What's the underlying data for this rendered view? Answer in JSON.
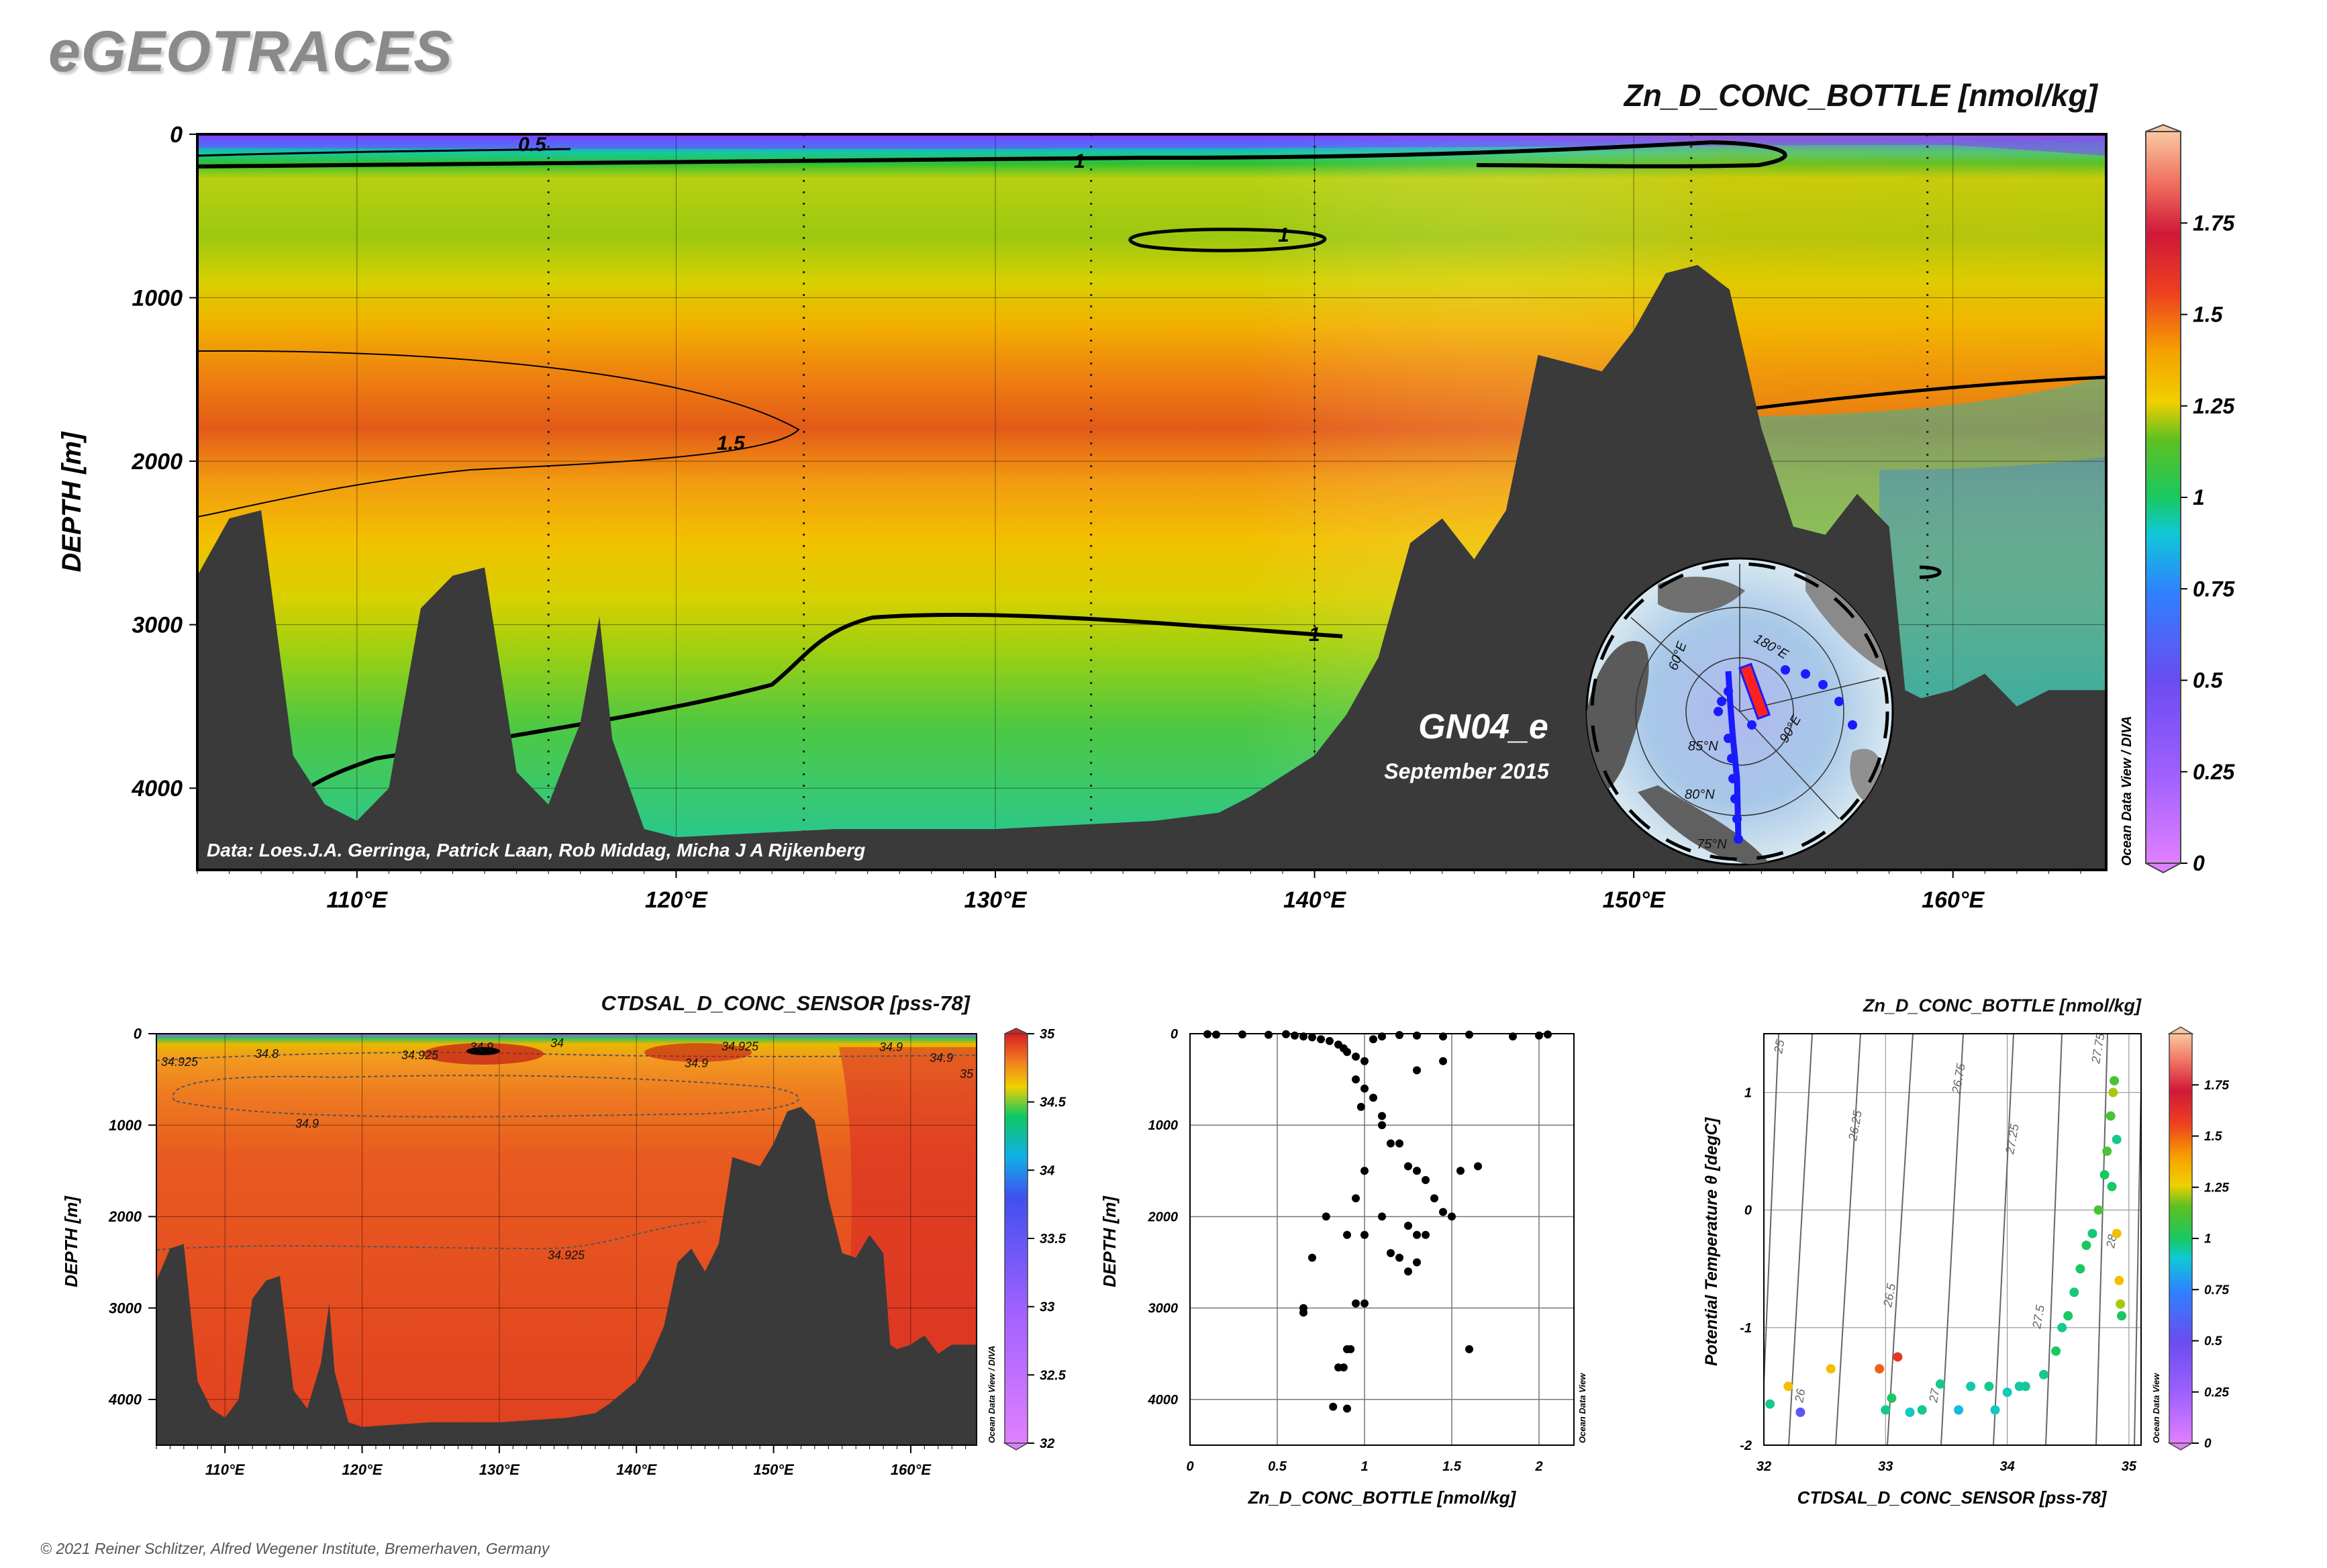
{
  "brand": "eGEOTRACES",
  "copyright": "© 2021 Reiner Schlitzer, Alfred Wegener Institute, Bremerhaven, Germany",
  "chart_data": [
    {
      "type": "heatmap",
      "title": "Zn_D_CONC_BOTTLE [nmol/kg]",
      "ylabel": "DEPTH [m]",
      "xlabel": "",
      "xlim": [
        105,
        164.8
      ],
      "ylim": [
        4500,
        0
      ],
      "x_ticks": [
        110,
        120,
        130,
        140,
        150,
        160
      ],
      "x_tick_labels": [
        "110°E",
        "120°E",
        "130°E",
        "140°E",
        "150°E",
        "160°E"
      ],
      "y_ticks": [
        0,
        1000,
        2000,
        3000,
        4000
      ],
      "y_tick_labels": [
        "0",
        "1000",
        "2000",
        "3000",
        "4000"
      ],
      "colorbar": {
        "min": 0,
        "max": 2,
        "ticks": [
          0,
          0.25,
          0.5,
          0.75,
          1,
          1.25,
          1.5,
          1.75
        ],
        "tick_labels": [
          "0",
          "0.25",
          "0.5",
          "0.75",
          "1",
          "1.25",
          "1.5",
          "1.75"
        ],
        "side_label": "Ocean Data View / DIVA"
      },
      "contour_labels": [
        "0.5",
        "1",
        "1",
        "1",
        "1.5"
      ],
      "station_longitudes": [
        116,
        124,
        133,
        140,
        151.8,
        159.2
      ],
      "bathymetry_depth": [
        [
          105,
          2700
        ],
        [
          106,
          2350
        ],
        [
          107,
          2300
        ],
        [
          108,
          3800
        ],
        [
          109,
          4100
        ],
        [
          110,
          4200
        ],
        [
          111,
          4000
        ],
        [
          112,
          2900
        ],
        [
          113,
          2700
        ],
        [
          114,
          2650
        ],
        [
          115,
          3900
        ],
        [
          116,
          4100
        ],
        [
          117,
          3600
        ],
        [
          117.6,
          2950
        ],
        [
          118,
          3700
        ],
        [
          119,
          4250
        ],
        [
          120,
          4300
        ],
        [
          125,
          4250
        ],
        [
          130,
          4250
        ],
        [
          135,
          4200
        ],
        [
          137,
          4150
        ],
        [
          138,
          4050
        ],
        [
          140,
          3800
        ],
        [
          141,
          3550
        ],
        [
          142,
          3200
        ],
        [
          143,
          2500
        ],
        [
          144,
          2350
        ],
        [
          145,
          2600
        ],
        [
          146,
          2300
        ],
        [
          147,
          1350
        ],
        [
          149,
          1450
        ],
        [
          150,
          1200
        ],
        [
          151,
          850
        ],
        [
          152,
          800
        ],
        [
          153,
          950
        ],
        [
          154,
          1800
        ],
        [
          155,
          2400
        ],
        [
          156,
          2450
        ],
        [
          157,
          2200
        ],
        [
          158,
          2400
        ],
        [
          158.5,
          3400
        ],
        [
          159,
          3450
        ],
        [
          160,
          3400
        ],
        [
          161,
          3300
        ],
        [
          162,
          3500
        ],
        [
          163,
          3400
        ],
        [
          164.8,
          3400
        ]
      ],
      "annotation_data": "Data: Loes.J.A. Gerringa, Patrick Laan, Rob Middag, Micha J A Rijkenberg",
      "section_name": "GN04_e",
      "section_date": "September 2015",
      "inset_map_labels": [
        "60°E",
        "180°E",
        "85°N",
        "90°E",
        "80°N",
        "75°N"
      ]
    },
    {
      "type": "heatmap",
      "title": "CTDSAL_D_CONC_SENSOR [pss-78]",
      "ylabel": "DEPTH [m]",
      "xlim": [
        105,
        164.8
      ],
      "ylim": [
        4500,
        0
      ],
      "x_ticks": [
        110,
        120,
        130,
        140,
        150,
        160
      ],
      "x_tick_labels": [
        "110°E",
        "120°E",
        "130°E",
        "140°E",
        "150°E",
        "160°E"
      ],
      "y_ticks": [
        0,
        1000,
        2000,
        3000,
        4000
      ],
      "y_tick_labels": [
        "0",
        "1000",
        "2000",
        "3000",
        "4000"
      ],
      "colorbar": {
        "min": 32,
        "max": 35,
        "ticks": [
          32,
          32.5,
          33,
          33.5,
          34,
          34.5,
          35
        ],
        "tick_labels": [
          "32",
          "32.5",
          "33",
          "33.5",
          "34",
          "34.5",
          "35"
        ],
        "side_label": "Ocean Data View / DIVA"
      },
      "contour_labels": [
        "34.8",
        "34",
        "34.9",
        "34.925",
        "34.925",
        "34.9",
        "34.9",
        "34.925",
        "34.9",
        "34.925",
        "34.9",
        "35"
      ]
    },
    {
      "type": "scatter",
      "title": "",
      "xlabel": "Zn_D_CONC_BOTTLE [nmol/kg]",
      "ylabel": "DEPTH [m]",
      "xlim": [
        0,
        2.2
      ],
      "ylim": [
        4500,
        0
      ],
      "x_ticks": [
        0,
        0.5,
        1,
        1.5,
        2
      ],
      "x_tick_labels": [
        "0",
        "0.5",
        "1",
        "1.5",
        "2"
      ],
      "y_ticks": [
        0,
        1000,
        2000,
        3000,
        4000
      ],
      "y_tick_labels": [
        "0",
        "1000",
        "2000",
        "3000",
        "4000"
      ],
      "side_label": "Ocean Data View",
      "points": [
        [
          0.1,
          5
        ],
        [
          0.15,
          10
        ],
        [
          0.3,
          8
        ],
        [
          0.45,
          12
        ],
        [
          0.55,
          5
        ],
        [
          0.6,
          20
        ],
        [
          0.65,
          30
        ],
        [
          0.7,
          40
        ],
        [
          0.75,
          60
        ],
        [
          0.8,
          80
        ],
        [
          0.85,
          120
        ],
        [
          0.88,
          160
        ],
        [
          0.9,
          200
        ],
        [
          0.95,
          250
        ],
        [
          1.0,
          300
        ],
        [
          1.05,
          60
        ],
        [
          1.1,
          30
        ],
        [
          1.2,
          15
        ],
        [
          1.3,
          20
        ],
        [
          1.45,
          30
        ],
        [
          1.6,
          10
        ],
        [
          1.85,
          30
        ],
        [
          2.0,
          20
        ],
        [
          2.05,
          8
        ],
        [
          0.95,
          500
        ],
        [
          1.0,
          600
        ],
        [
          1.05,
          700
        ],
        [
          0.98,
          800
        ],
        [
          1.1,
          900
        ],
        [
          1.3,
          400
        ],
        [
          1.45,
          300
        ],
        [
          1.1,
          1000
        ],
        [
          1.15,
          1200
        ],
        [
          1.2,
          1200
        ],
        [
          1.25,
          1450
        ],
        [
          1.3,
          1500
        ],
        [
          1.0,
          1500
        ],
        [
          1.35,
          1600
        ],
        [
          1.4,
          1800
        ],
        [
          1.55,
          1500
        ],
        [
          1.65,
          1450
        ],
        [
          0.95,
          1800
        ],
        [
          1.1,
          2000
        ],
        [
          1.25,
          2100
        ],
        [
          1.3,
          2200
        ],
        [
          1.35,
          2200
        ],
        [
          1.45,
          1950
        ],
        [
          1.5,
          2000
        ],
        [
          1.0,
          2200
        ],
        [
          1.15,
          2400
        ],
        [
          1.2,
          2450
        ],
        [
          1.25,
          2600
        ],
        [
          1.3,
          2500
        ],
        [
          0.78,
          2000
        ],
        [
          0.9,
          2200
        ],
        [
          0.7,
          2450
        ],
        [
          0.95,
          2950
        ],
        [
          1.0,
          2950
        ],
        [
          0.65,
          3000
        ],
        [
          0.65,
          3050
        ],
        [
          0.9,
          3450
        ],
        [
          0.92,
          3450
        ],
        [
          0.85,
          3650
        ],
        [
          0.88,
          3650
        ],
        [
          1.6,
          3450
        ],
        [
          0.82,
          4080
        ],
        [
          0.9,
          4100
        ]
      ]
    },
    {
      "type": "scatter",
      "title": "Zn_D_CONC_BOTTLE [nmol/kg]",
      "xlabel": "CTDSAL_D_CONC_SENSOR [pss-78]",
      "ylabel": "Potential Temperature θ [degC]",
      "xlim": [
        32,
        35.1
      ],
      "ylim": [
        -2,
        1.5
      ],
      "x_ticks": [
        32,
        33,
        34,
        35
      ],
      "x_tick_labels": [
        "32",
        "33",
        "34",
        "35"
      ],
      "y_ticks": [
        -2,
        -1,
        0,
        1
      ],
      "y_tick_labels": [
        "-2",
        "-1",
        "0",
        "1"
      ],
      "colorbar": {
        "min": 0,
        "max": 2,
        "ticks": [
          0,
          0.25,
          0.5,
          0.75,
          1,
          1.25,
          1.5,
          1.75
        ],
        "tick_labels": [
          "0",
          "0.25",
          "0.5",
          "0.75",
          "1",
          "1.25",
          "1.5",
          "1.75"
        ],
        "side_label": "Ocean Data View"
      },
      "isopycnal_labels": [
        "25",
        "26",
        "26.25",
        "26.5",
        "26.75",
        "27",
        "27.25",
        "27.5",
        "27.75",
        "28"
      ],
      "points": [
        [
          32.05,
          -1.65,
          0.9
        ],
        [
          32.2,
          -1.5,
          1.3
        ],
        [
          32.3,
          -1.72,
          0.3
        ],
        [
          32.55,
          -1.35,
          1.3
        ],
        [
          32.95,
          -1.35,
          1.5
        ],
        [
          33.05,
          -1.6,
          1.0
        ],
        [
          33.0,
          -1.7,
          0.9
        ],
        [
          33.1,
          -1.25,
          1.6
        ],
        [
          33.2,
          -1.72,
          0.8
        ],
        [
          33.3,
          -1.7,
          0.9
        ],
        [
          33.45,
          -1.48,
          0.9
        ],
        [
          33.6,
          -1.7,
          0.7
        ],
        [
          33.7,
          -1.5,
          0.85
        ],
        [
          33.85,
          -1.5,
          0.9
        ],
        [
          33.9,
          -1.7,
          0.8
        ],
        [
          34.0,
          -1.55,
          0.8
        ],
        [
          34.1,
          -1.5,
          0.85
        ],
        [
          34.15,
          -1.5,
          0.9
        ],
        [
          34.3,
          -1.4,
          0.9
        ],
        [
          34.4,
          -1.2,
          1.0
        ],
        [
          34.45,
          -1.0,
          0.9
        ],
        [
          34.5,
          -0.9,
          1.0
        ],
        [
          34.55,
          -0.7,
          0.95
        ],
        [
          34.6,
          -0.5,
          1.0
        ],
        [
          34.65,
          -0.3,
          1.0
        ],
        [
          34.7,
          -0.2,
          0.95
        ],
        [
          34.75,
          0.0,
          1.1
        ],
        [
          34.8,
          0.3,
          1.0
        ],
        [
          34.82,
          0.5,
          1.1
        ],
        [
          34.85,
          0.8,
          1.1
        ],
        [
          34.87,
          1.0,
          1.2
        ],
        [
          34.88,
          1.1,
          1.1
        ],
        [
          34.9,
          -0.2,
          1.3
        ],
        [
          34.92,
          -0.6,
          1.3
        ],
        [
          34.93,
          -0.8,
          1.2
        ],
        [
          34.94,
          -0.9,
          1.0
        ],
        [
          34.86,
          0.2,
          1.0
        ],
        [
          34.9,
          0.6,
          0.9
        ]
      ]
    }
  ]
}
